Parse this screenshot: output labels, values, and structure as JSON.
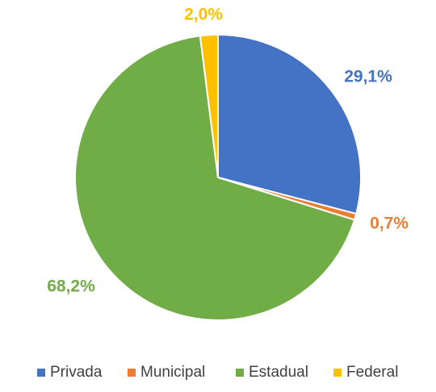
{
  "chart_data": {
    "type": "pie",
    "title": "",
    "slices": [
      {
        "name": "Privada",
        "value": 29.1,
        "label": "29,1%",
        "color": "#4472C4"
      },
      {
        "name": "Municipal",
        "value": 0.7,
        "label": "0,7%",
        "color": "#ED7D31"
      },
      {
        "name": "Estadual",
        "value": 68.2,
        "label": "68,2%",
        "color": "#70AD47"
      },
      {
        "name": "Federal",
        "value": 2.0,
        "label": "2,0%",
        "color": "#FFC000"
      }
    ],
    "start_angle_deg": 0,
    "direction": "clockwise",
    "legend_position": "bottom",
    "data_labels": "outside"
  }
}
